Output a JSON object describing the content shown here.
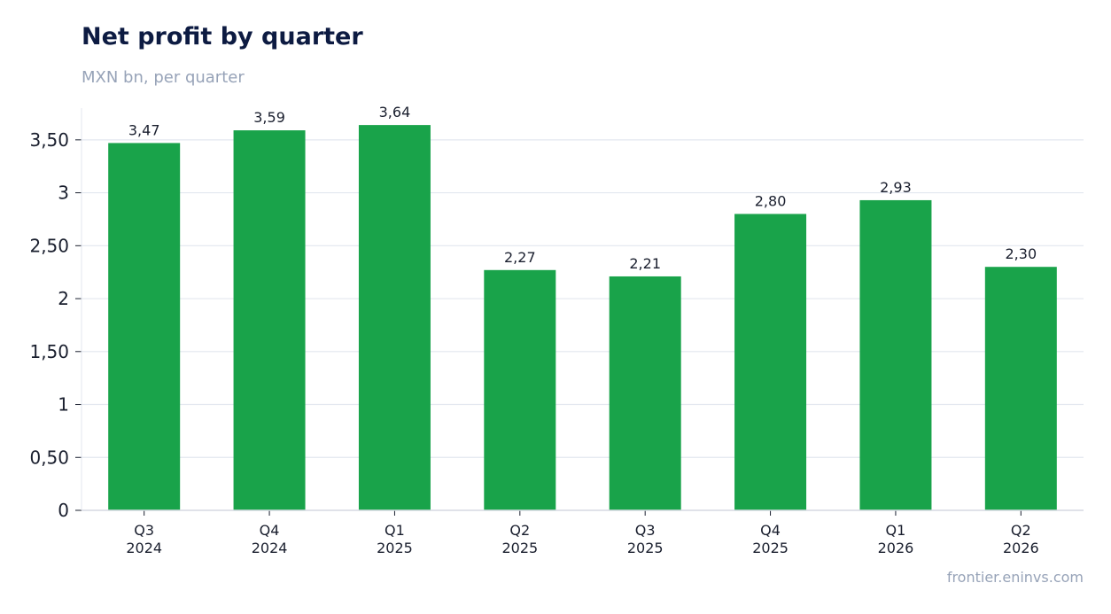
{
  "title": "Net profit by quarter",
  "subtitle": "MXN bn, per quarter",
  "source": "frontier.eninvs.com",
  "colors": {
    "bar": "#19a34a",
    "grid": "#e3e7ef",
    "axis": "#d5d9e2",
    "title": "#0d1b42",
    "muted": "#97a3b8"
  },
  "chart_data": {
    "type": "bar",
    "title": "Net profit by quarter",
    "subtitle": "MXN bn, per quarter",
    "categories": [
      "Q3 2024",
      "Q4 2024",
      "Q1 2025",
      "Q2 2025",
      "Q3 2025",
      "Q4 2025",
      "Q1 2026",
      "Q2 2026"
    ],
    "category_lines": [
      [
        "Q3",
        "2024"
      ],
      [
        "Q4",
        "2024"
      ],
      [
        "Q1",
        "2025"
      ],
      [
        "Q2",
        "2025"
      ],
      [
        "Q3",
        "2025"
      ],
      [
        "Q4",
        "2025"
      ],
      [
        "Q1",
        "2026"
      ],
      [
        "Q2",
        "2026"
      ]
    ],
    "values": [
      3.47,
      3.59,
      3.64,
      2.27,
      2.21,
      2.8,
      2.93,
      2.3
    ],
    "value_labels": [
      "3,47",
      "3,59",
      "3,64",
      "2,27",
      "2,21",
      "2,80",
      "2,93",
      "2,30"
    ],
    "yticks": [
      0,
      0.5,
      1,
      1.5,
      2,
      2.5,
      3,
      3.5
    ],
    "ytick_labels": [
      "0",
      "0,50",
      "1",
      "1,50",
      "2",
      "2,50",
      "3",
      "3,50"
    ],
    "ylim": [
      0,
      3.8
    ],
    "grid": true,
    "legend": "none"
  }
}
